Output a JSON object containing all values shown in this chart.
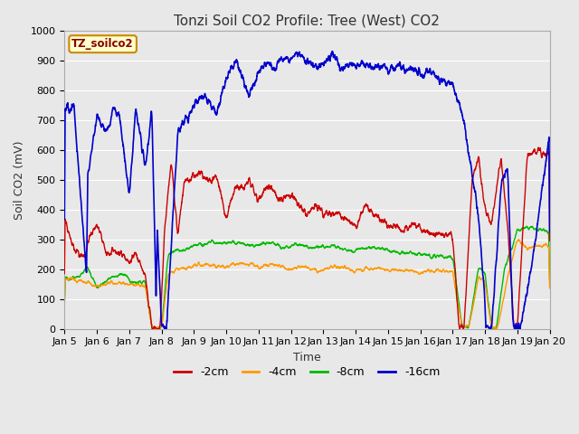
{
  "title": "Tonzi Soil CO2 Profile: Tree (West) CO2",
  "xlabel": "Time",
  "ylabel": "Soil CO2 (mV)",
  "ylim": [
    0,
    1000
  ],
  "x_tick_labels": [
    "Jan 5",
    "Jan 6",
    "Jan 7",
    "Jan 8",
    "Jan 9",
    "Jan 10",
    "Jan 11",
    "Jan 12",
    "Jan 13",
    "Jan 14",
    "Jan 15",
    "Jan 16",
    "Jan 17",
    "Jan 18",
    "Jan 19",
    "Jan 20"
  ],
  "legend_label": "TZ_soilco2",
  "series_labels": [
    "-2cm",
    "-4cm",
    "-8cm",
    "-16cm"
  ],
  "series_colors": [
    "#cc0000",
    "#ff9900",
    "#00bb00",
    "#0000cc"
  ],
  "bg_color": "#e8e8e8",
  "grid_color": "#ffffff",
  "title_fontsize": 11,
  "axis_fontsize": 9,
  "tick_fontsize": 8
}
